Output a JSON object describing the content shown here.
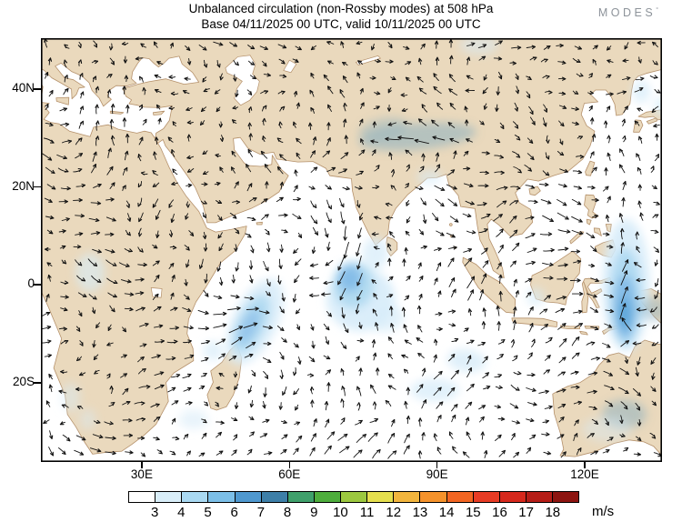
{
  "header": {
    "title_line1": "Unbalanced circulation (non-Rossby modes) at 508 hPa",
    "title_line2": "Base 04/11/2025 00 UTC, valid 10/11/2025 00 UTC",
    "logo_text": "MODES",
    "logo_mark": "°"
  },
  "map": {
    "lat_ticks": [
      {
        "label": "40N",
        "lat": 40
      },
      {
        "label": "20N",
        "lat": 20
      },
      {
        "label": "0",
        "lat": 0
      },
      {
        "label": "20S",
        "lat": -20
      }
    ],
    "lon_ticks": [
      {
        "label": "30E",
        "lon": 30
      },
      {
        "label": "60E",
        "lon": 60
      },
      {
        "label": "90E",
        "lon": 90
      },
      {
        "label": "120E",
        "lon": 120
      }
    ]
  },
  "colorbar": {
    "unit": "m/s",
    "ticks": [
      "3",
      "4",
      "5",
      "6",
      "7",
      "8",
      "9",
      "10",
      "11",
      "12",
      "13",
      "14",
      "15",
      "16",
      "17",
      "18"
    ],
    "colors": [
      "#ffffff",
      "#d9eef9",
      "#a9d9f2",
      "#7cbfe8",
      "#4f98cf",
      "#3d7fa8",
      "#3fa06b",
      "#4ead3c",
      "#9cc83f",
      "#e5df4e",
      "#f2b53d",
      "#f5922b",
      "#f26522",
      "#e73b24",
      "#d6281c",
      "#b51d17",
      "#8d1410"
    ]
  },
  "chart_data": {
    "type": "vector_field_map",
    "title": "Unbalanced circulation (non-Rossby modes) at 508 hPa",
    "subtitle": "Base 04/11/2025 00 UTC, valid 10/11/2025 00 UTC",
    "variable": "unbalanced (non-Rossby mode) wind circulation",
    "level": "508 hPa",
    "base_time": "04/11/2025 00 UTC",
    "valid_time": "10/11/2025 00 UTC",
    "unit": "m/s",
    "lon_range_deg_east": [
      9.5,
      135.7
    ],
    "lat_range_deg_north": [
      -36.2,
      50.4
    ],
    "lon_tick_labels": [
      "30E",
      "60E",
      "90E",
      "120E"
    ],
    "lat_tick_labels": [
      "40N",
      "20N",
      "0",
      "20S"
    ],
    "colorbar_levels_ms": [
      3,
      4,
      5,
      6,
      7,
      8,
      9,
      10,
      11,
      12,
      13,
      14,
      15,
      16,
      17,
      18
    ],
    "colorbar_colors": [
      "#ffffff",
      "#d9eef9",
      "#a9d9f2",
      "#7cbfe8",
      "#4f98cf",
      "#3d7fa8",
      "#3fa06b",
      "#4ead3c",
      "#9cc83f",
      "#e5df4e",
      "#f2b53d",
      "#f5922b",
      "#f26522",
      "#e73b24",
      "#d6281c",
      "#b51d17",
      "#8d1410"
    ],
    "arrows": {
      "style": "quiver",
      "color": "black",
      "coverage": "full domain, ~17 px grid"
    },
    "land_color": "#ead9bd",
    "ocean_color": "#ffffff",
    "shaded_speed_maxima_approx": [
      {
        "region": "central equatorial Indian Ocean, southward flow",
        "lon": 73,
        "lat": 0,
        "max_ms": 6
      },
      {
        "region": "western Indian Ocean band near Somali coast",
        "lon": 52,
        "lat": -8,
        "max_ms": 5
      },
      {
        "region": "meridional jet through Maritime Continent ~128E",
        "lon": 128,
        "lat": -5,
        "max_ms": 7
      },
      {
        "region": "westward band along Himalayas",
        "lon": 86,
        "lat": 30,
        "max_ms": 5
      },
      {
        "region": "southeast Indian Ocean patch",
        "lon": 96,
        "lat": -15,
        "max_ms": 4
      },
      {
        "region": "interior Australia",
        "lon": 128,
        "lat": -27,
        "max_ms": 4
      },
      {
        "region": "Sea of Japan / Korea area patches",
        "lon": 132,
        "lat": 39,
        "max_ms": 4
      },
      {
        "region": "equatorial Africa patch",
        "lon": 19,
        "lat": 2,
        "max_ms": 3
      }
    ]
  }
}
